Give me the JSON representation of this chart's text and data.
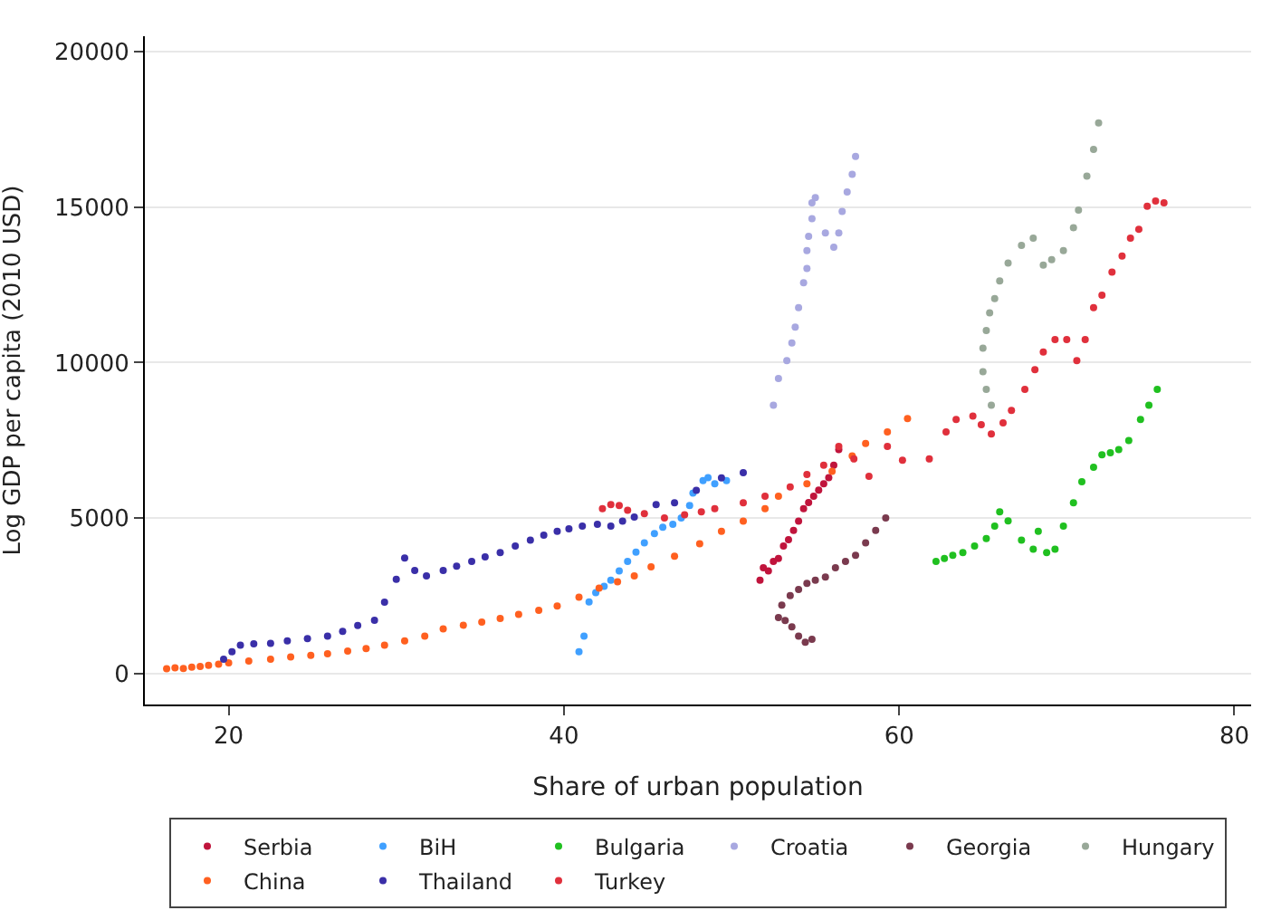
{
  "chart_data": {
    "type": "scatter",
    "xlabel": "Share of urban population",
    "ylabel": "Log GDP per capita (2010 USD)",
    "xlim": [
      15,
      81
    ],
    "xticks": [
      20,
      40,
      60,
      80
    ],
    "ylim": [
      -1000,
      20500
    ],
    "yticks": [
      0,
      5000,
      10000,
      15000,
      20000
    ],
    "grid": "y",
    "legend": "bottom",
    "marker": "circle",
    "series": [
      {
        "name": "Serbia",
        "color": "#c0143c",
        "x": [
          51.7,
          51.9,
          52.2,
          52.5,
          52.8,
          53.1,
          53.4,
          53.7,
          54,
          54.3,
          54.6,
          54.9,
          55.2,
          55.5,
          55.8,
          56.1,
          56.4
        ],
        "values": [
          3000,
          3400,
          3300,
          3600,
          3700,
          4100,
          4300,
          4600,
          4900,
          5300,
          5500,
          5700,
          5900,
          6100,
          6300,
          6700,
          7200
        ]
      },
      {
        "name": "BiH",
        "color": "#40a0ff",
        "x": [
          40.9,
          41.2,
          41.5,
          41.9,
          42.4,
          42.8,
          43.3,
          43.8,
          44.3,
          44.8,
          45.4,
          45.9,
          46.5,
          47,
          47.5,
          47.7,
          48.3,
          48.6,
          49,
          49.7
        ],
        "values": [
          700,
          1200,
          2300,
          2600,
          2800,
          3000,
          3300,
          3600,
          3900,
          4200,
          4500,
          4700,
          4800,
          5000,
          5400,
          5800,
          6200,
          6300,
          6100,
          6200
        ]
      },
      {
        "name": "Bulgaria",
        "color": "#20c020",
        "x": [
          62.2,
          62.7,
          63.2,
          63.8,
          64.5,
          65.2,
          65.7,
          66,
          66.5,
          67.3,
          68,
          68.3,
          68.8,
          69.3,
          69.8,
          70.4,
          70.9,
          71.6,
          72.1,
          72.6,
          73.1,
          73.7,
          74.4,
          74.9,
          75.4
        ],
        "values": [
          3600,
          3700,
          3800,
          3890,
          4100,
          4340,
          4740,
          5200,
          4910,
          4290,
          4000,
          4570,
          3890,
          4000,
          4740,
          5490,
          6170,
          6630,
          7030,
          7100,
          7200,
          7490,
          8170,
          8630,
          9140
        ]
      },
      {
        "name": "Croatia",
        "color": "#a8a8e0",
        "x": [
          52.5,
          52.8,
          53.3,
          53.6,
          53.8,
          54,
          54.3,
          54.5,
          54.5,
          54.6,
          54.8,
          54.8,
          55,
          55.6,
          56.1,
          56.4,
          56.6,
          56.9,
          57.2,
          57.4
        ],
        "values": [
          8630,
          9490,
          10060,
          10630,
          11140,
          11770,
          12570,
          13030,
          13600,
          14060,
          14630,
          15140,
          15310,
          14170,
          13710,
          14170,
          14860,
          15490,
          16060,
          16630
        ]
      },
      {
        "name": "Georgia",
        "color": "#7a3a4e",
        "x": [
          54.8,
          54.4,
          54,
          53.6,
          53.2,
          52.8,
          53,
          53.5,
          54,
          54.5,
          55,
          55.6,
          56.2,
          56.8,
          57.4,
          58,
          58.6,
          59.2
        ],
        "values": [
          1100,
          1000,
          1200,
          1500,
          1700,
          1800,
          2200,
          2500,
          2700,
          2900,
          3000,
          3100,
          3400,
          3600,
          3800,
          4200,
          4600,
          5000
        ]
      },
      {
        "name": "Hungary",
        "color": "#98a898",
        "x": [
          65.5,
          65.2,
          65,
          65,
          65.2,
          65.4,
          65.7,
          66,
          66.5,
          67.3,
          68,
          68.6,
          69.1,
          69.8,
          70.4,
          70.7,
          71.2,
          71.6,
          71.9
        ],
        "values": [
          8630,
          9140,
          9710,
          10460,
          11030,
          11600,
          12060,
          12630,
          13200,
          13770,
          14000,
          13140,
          13310,
          13600,
          14340,
          14910,
          16000,
          16860,
          17710
        ]
      },
      {
        "name": "China",
        "color": "#ff6020",
        "x": [
          16.3,
          16.8,
          17.3,
          17.8,
          18.3,
          18.8,
          19.4,
          20,
          21.2,
          22.5,
          23.7,
          24.9,
          25.9,
          27.1,
          28.2,
          29.3,
          30.5,
          31.7,
          32.8,
          34,
          35.1,
          36.2,
          37.3,
          38.5,
          39.6,
          40.9,
          42.1,
          43.2,
          44.2,
          45.2,
          46.6,
          48.1,
          49.4,
          50.7,
          52,
          52.8,
          54.5,
          56,
          57.2,
          58,
          59.3,
          60.5
        ],
        "values": [
          150,
          180,
          160,
          200,
          220,
          260,
          300,
          340,
          400,
          460,
          530,
          580,
          630,
          720,
          800,
          910,
          1050,
          1200,
          1430,
          1550,
          1650,
          1770,
          1900,
          2030,
          2170,
          2450,
          2740,
          2950,
          3140,
          3430,
          3770,
          4170,
          4570,
          4900,
          5300,
          5700,
          6100,
          6500,
          7000,
          7400,
          7770,
          8200
        ]
      },
      {
        "name": "Thailand",
        "color": "#3a2fa8",
        "x": [
          19.7,
          20.2,
          20.7,
          21.5,
          22.5,
          23.5,
          24.7,
          25.9,
          26.8,
          27.7,
          28.7,
          29.3,
          30,
          30.5,
          31.1,
          31.8,
          32.8,
          33.6,
          34.5,
          35.3,
          36.2,
          37.1,
          38,
          38.8,
          39.6,
          40.3,
          41.1,
          42,
          42.8,
          43.5,
          44.2,
          45.5,
          46.6,
          47.9,
          49.4,
          50.7
        ],
        "values": [
          460,
          700,
          910,
          950,
          970,
          1050,
          1120,
          1200,
          1350,
          1540,
          1710,
          2290,
          3030,
          3710,
          3310,
          3140,
          3310,
          3450,
          3600,
          3750,
          3890,
          4100,
          4290,
          4450,
          4570,
          4650,
          4740,
          4800,
          4740,
          4900,
          5030,
          5430,
          5490,
          5890,
          6290,
          6460
        ]
      },
      {
        "name": "Turkey",
        "color": "#e0303c",
        "x": [
          42.3,
          42.8,
          43.3,
          43.8,
          44.8,
          46,
          47.2,
          48.2,
          49,
          50.7,
          52,
          53.5,
          54.5,
          55.5,
          56.4,
          57.3,
          58.2,
          59.3,
          60.2,
          61.8,
          62.8,
          63.4,
          64.4,
          64.9,
          65.5,
          66.2,
          66.7,
          67.5,
          68.1,
          68.6,
          69.3,
          70,
          70.6,
          71.1,
          71.6,
          72.1,
          72.7,
          73.3,
          73.8,
          74.3,
          74.8,
          75.3,
          75.8
        ],
        "values": [
          5300,
          5430,
          5400,
          5250,
          5140,
          5000,
          5100,
          5200,
          5300,
          5490,
          5700,
          6000,
          6400,
          6700,
          7300,
          6900,
          6340,
          7300,
          6860,
          6900,
          7770,
          8170,
          8280,
          8000,
          7700,
          8060,
          8460,
          9140,
          9770,
          10340,
          10740,
          10740,
          10060,
          10740,
          11770,
          12170,
          12910,
          13430,
          14000,
          14290,
          15030,
          15200,
          15140
        ]
      }
    ]
  }
}
